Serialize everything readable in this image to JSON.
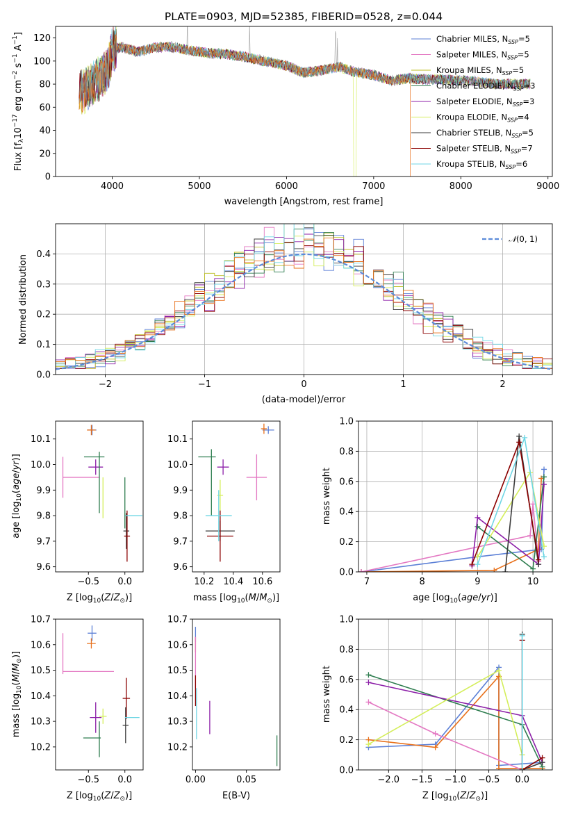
{
  "figure_title": "PLATE=0903, MJD=52385, FIBERID=0528, z=0.044",
  "colors": {
    "Chabrier MILES": "#5b7fd6",
    "Salpeter MILES": "#e377c2",
    "Kroupa MILES": "#bcbd22",
    "Chabrier ELODIE": "#2e7d4f",
    "Salpeter ELODIE": "#8c1fa8",
    "Kroupa ELODIE": "#d4ee5a",
    "Chabrier STELIB": "#3a3a3a",
    "Salpeter STELIB": "#8b0000",
    "Kroupa STELIB": "#6fd6e4",
    "orange": "#e8701a",
    "gaussian": "#5b8bd9"
  },
  "chart_data": [
    {
      "id": "spectrum",
      "type": "line",
      "xlabel": "wavelength [Angstrom, rest frame]",
      "ylabel": "Flux [f_λ10^-17 erg cm^-2 s^-1 A^-1]",
      "xlim": [
        3350,
        9050
      ],
      "ylim": [
        0,
        130
      ],
      "xticks": [
        4000,
        5000,
        6000,
        7000,
        8000,
        9000
      ],
      "yticks": [
        0,
        20,
        40,
        60,
        80,
        100,
        120
      ],
      "legend": [
        {
          "name": "Chabrier MILES",
          "nssp": "5"
        },
        {
          "name": "Salpeter MILES",
          "nssp": "5"
        },
        {
          "name": "Kroupa MILES",
          "nssp": "5"
        },
        {
          "name": "Chabrier ELODIE",
          "nssp": "3"
        },
        {
          "name": "Salpeter ELODIE",
          "nssp": "3"
        },
        {
          "name": "Kroupa ELODIE",
          "nssp": "4"
        },
        {
          "name": "Chabrier STELIB",
          "nssp": "5"
        },
        {
          "name": "Salpeter STELIB",
          "nssp": "7"
        },
        {
          "name": "Kroupa STELIB",
          "nssp": "6"
        }
      ],
      "continuum": [
        [
          3620,
          72
        ],
        [
          3700,
          75
        ],
        [
          3800,
          82
        ],
        [
          3900,
          88
        ],
        [
          3960,
          95
        ],
        [
          4000,
          110
        ],
        [
          4100,
          112
        ],
        [
          4300,
          108
        ],
        [
          4500,
          112
        ],
        [
          4700,
          112
        ],
        [
          4900,
          109
        ],
        [
          5100,
          107
        ],
        [
          5300,
          106
        ],
        [
          5500,
          104
        ],
        [
          5800,
          99
        ],
        [
          6000,
          96
        ],
        [
          6200,
          90
        ],
        [
          6400,
          92
        ],
        [
          6600,
          95
        ],
        [
          6800,
          90
        ],
        [
          7000,
          88
        ],
        [
          7200,
          83
        ],
        [
          7400,
          85
        ],
        [
          7600,
          84
        ],
        [
          7800,
          84
        ],
        [
          8000,
          83
        ],
        [
          8200,
          82
        ],
        [
          8400,
          80
        ],
        [
          8600,
          80
        ],
        [
          8800,
          80
        ]
      ]
    },
    {
      "id": "residuals",
      "type": "histogram",
      "xlabel": "(data-model)/error",
      "ylabel": "Normed distribution",
      "xlim": [
        -2.5,
        2.5
      ],
      "ylim": [
        0,
        0.5
      ],
      "xticks": [
        -2,
        -1,
        0,
        1,
        2
      ],
      "yticks": [
        0.0,
        0.1,
        0.2,
        0.3,
        0.4
      ],
      "grid": true,
      "legend_label": "N(0,1)",
      "bin_width": 0.1
    },
    {
      "id": "age_vs_Z",
      "type": "errorbar",
      "xlabel": "Z [log10(Z/Z⊙)]",
      "ylabel": "age [log10(age/yr)]",
      "xlim": [
        -0.95,
        0.25
      ],
      "ylim": [
        9.58,
        10.17
      ],
      "xticks": [
        -0.5,
        0.0
      ],
      "yticks": [
        9.6,
        9.7,
        9.8,
        9.9,
        10.0,
        10.1
      ],
      "points": [
        {
          "series": "Chabrier MILES",
          "x": -0.45,
          "y": 10.135,
          "xerr": 0.06,
          "yerr": 0.02
        },
        {
          "series": "orange",
          "x": -0.46,
          "y": 10.135,
          "xerr": 0.06,
          "yerr": 0.02
        },
        {
          "series": "Salpeter MILES",
          "x": -0.85,
          "y": 9.95,
          "xerr": 0.0,
          "yerr": 0.08
        },
        {
          "series": "Salpeter MILES",
          "x": -0.6,
          "y": 9.95,
          "xerr": 0.25,
          "yerr": 0.0
        },
        {
          "series": "Salpeter ELODIE",
          "x": -0.4,
          "y": 9.99,
          "xerr": 0.1,
          "yerr": 0.03
        },
        {
          "series": "Chabrier ELODIE",
          "x": -0.42,
          "y": 10.03,
          "xerr": 0.14,
          "yerr": 0.0
        },
        {
          "series": "Chabrier ELODIE",
          "x": -0.35,
          "y": 9.93,
          "xerr": 0.0,
          "yerr": 0.12
        },
        {
          "series": "Kroupa ELODIE",
          "x": -0.3,
          "y": 9.87,
          "xerr": 0.0,
          "yerr": 0.08
        },
        {
          "series": "Chabrier STELIB",
          "x": 0.02,
          "y": 9.74,
          "xerr": 0.04,
          "yerr": 0.07
        },
        {
          "series": "Salpeter STELIB",
          "x": 0.03,
          "y": 9.72,
          "xerr": 0.04,
          "yerr": 0.1
        },
        {
          "series": "Kroupa STELIB",
          "x": 0.12,
          "y": 9.8,
          "xerr": 0.12,
          "yerr": 0.0
        },
        {
          "series": "Chabrier ELODIE",
          "x": 0.0,
          "y": 9.85,
          "xerr": 0.0,
          "yerr": 0.1
        }
      ]
    },
    {
      "id": "age_vs_mass",
      "type": "errorbar",
      "xlabel": "mass [log10(M/M⊙)]",
      "xlim": [
        10.12,
        10.72
      ],
      "ylim": [
        9.58,
        10.17
      ],
      "xticks": [
        10.2,
        10.4,
        10.6
      ],
      "yticks": [
        9.6,
        9.7,
        9.8,
        9.9,
        10.0,
        10.1
      ],
      "points": [
        {
          "series": "Chabrier MILES",
          "x": 10.64,
          "y": 10.135,
          "xerr": 0.04,
          "yerr": 0.015
        },
        {
          "series": "orange",
          "x": 10.61,
          "y": 10.14,
          "xerr": 0.02,
          "yerr": 0.02
        },
        {
          "series": "Salpeter MILES",
          "x": 10.56,
          "y": 9.95,
          "xerr": 0.07,
          "yerr": 0.09
        },
        {
          "series": "Salpeter ELODIE",
          "x": 10.33,
          "y": 9.99,
          "xerr": 0.04,
          "yerr": 0.03
        },
        {
          "series": "Chabrier ELODIE",
          "x": 10.22,
          "y": 10.03,
          "xerr": 0.06,
          "yerr": 0.0
        },
        {
          "series": "Chabrier ELODIE",
          "x": 10.25,
          "y": 9.93,
          "xerr": 0.0,
          "yerr": 0.13
        },
        {
          "series": "Kroupa ELODIE",
          "x": 10.31,
          "y": 9.88,
          "xerr": 0.02,
          "yerr": 0.06
        },
        {
          "series": "Chabrier STELIB",
          "x": 10.31,
          "y": 9.74,
          "xerr": 0.1,
          "yerr": 0.04
        },
        {
          "series": "Salpeter STELIB",
          "x": 10.31,
          "y": 9.72,
          "xerr": 0.09,
          "yerr": 0.1
        },
        {
          "series": "Kroupa STELIB",
          "x": 10.3,
          "y": 9.8,
          "xerr": 0.09,
          "yerr": 0.1
        }
      ]
    },
    {
      "id": "mass_weight_vs_age",
      "type": "line",
      "xlabel": "age [log10(age/yr)]",
      "ylabel": "mass weight",
      "xlim": [
        6.85,
        10.35
      ],
      "ylim": [
        0,
        1
      ],
      "xticks": [
        7,
        8,
        9,
        10
      ],
      "yticks": [
        0.0,
        0.2,
        0.4,
        0.6,
        0.8,
        1.0
      ],
      "grid": true,
      "series": [
        {
          "name": "Chabrier MILES",
          "points": [
            [
              6.9,
              0.0
            ],
            [
              9.0,
              0.1
            ],
            [
              10.15,
              0.15
            ],
            [
              10.2,
              0.68
            ]
          ]
        },
        {
          "name": "orange",
          "points": [
            [
              6.9,
              0.0
            ],
            [
              9.3,
              0.01
            ],
            [
              10.1,
              0.15
            ],
            [
              10.15,
              0.62
            ]
          ]
        },
        {
          "name": "Salpeter MILES",
          "points": [
            [
              6.9,
              0.0
            ],
            [
              9.95,
              0.24
            ],
            [
              10.0,
              0.45
            ],
            [
              10.1,
              0.07
            ]
          ]
        },
        {
          "name": "Chabrier ELODIE",
          "points": [
            [
              9.0,
              0.3
            ],
            [
              10.0,
              0.02
            ],
            [
              10.2,
              0.63
            ]
          ]
        },
        {
          "name": "Salpeter ELODIE",
          "points": [
            [
              8.9,
              0.04
            ],
            [
              9.0,
              0.36
            ],
            [
              10.1,
              0.05
            ],
            [
              10.2,
              0.58
            ]
          ]
        },
        {
          "name": "Kroupa ELODIE",
          "points": [
            [
              9.0,
              0.1
            ],
            [
              9.95,
              0.66
            ],
            [
              10.2,
              0.17
            ]
          ]
        },
        {
          "name": "Chabrier STELIB",
          "points": [
            [
              9.5,
              0.0
            ],
            [
              9.75,
              0.9
            ],
            [
              10.1,
              0.05
            ]
          ]
        },
        {
          "name": "Salpeter STELIB",
          "points": [
            [
              8.9,
              0.05
            ],
            [
              9.75,
              0.86
            ],
            [
              10.1,
              0.08
            ]
          ]
        },
        {
          "name": "Kroupa STELIB",
          "points": [
            [
              9.0,
              0.05
            ],
            [
              9.85,
              0.89
            ],
            [
              10.2,
              0.1
            ]
          ]
        }
      ]
    },
    {
      "id": "mass_vs_Z",
      "type": "errorbar",
      "xlabel": "Z [log10(Z/Z⊙)]",
      "ylabel": "mass [log10(M/M⊙)]",
      "xlim": [
        -0.95,
        0.25
      ],
      "ylim": [
        10.11,
        10.7
      ],
      "xticks": [
        -0.5,
        0.0
      ],
      "yticks": [
        10.2,
        10.3,
        10.4,
        10.5,
        10.6,
        10.7
      ],
      "points": [
        {
          "series": "Chabrier MILES",
          "x": -0.45,
          "y": 10.645,
          "xerr": 0.06,
          "yerr": 0.03
        },
        {
          "series": "orange",
          "x": -0.46,
          "y": 10.605,
          "xerr": 0.06,
          "yerr": 0.02
        },
        {
          "series": "Salpeter MILES",
          "x": -0.85,
          "y": 10.565,
          "xerr": 0.0,
          "yerr": 0.08
        },
        {
          "series": "Salpeter MILES",
          "x": -0.5,
          "y": 10.495,
          "xerr": 0.35,
          "yerr": 0.0
        },
        {
          "series": "Salpeter ELODIE",
          "x": -0.4,
          "y": 10.315,
          "xerr": 0.08,
          "yerr": 0.06
        },
        {
          "series": "Kroupa ELODIE",
          "x": -0.3,
          "y": 10.32,
          "xerr": 0.05,
          "yerr": 0.03
        },
        {
          "series": "Chabrier ELODIE",
          "x": -0.45,
          "y": 10.235,
          "xerr": 0.12,
          "yerr": 0.0
        },
        {
          "series": "Chabrier ELODIE",
          "x": -0.35,
          "y": 10.23,
          "xerr": 0.0,
          "yerr": 0.07
        },
        {
          "series": "Salpeter STELIB",
          "x": 0.02,
          "y": 10.39,
          "xerr": 0.05,
          "yerr": 0.08
        },
        {
          "series": "Chabrier STELIB",
          "x": 0.01,
          "y": 10.285,
          "xerr": 0.04,
          "yerr": 0.07
        },
        {
          "series": "Kroupa STELIB",
          "x": 0.1,
          "y": 10.315,
          "xerr": 0.1,
          "yerr": 0.0
        }
      ]
    },
    {
      "id": "mass_vs_ebv",
      "type": "errorbar",
      "xlabel": "E(B-V)",
      "xlim": [
        -0.003,
        0.083
      ],
      "ylim": [
        10.11,
        10.7
      ],
      "xticks": [
        0.0,
        0.05
      ],
      "yticks": [
        10.2,
        10.3,
        10.4,
        10.5,
        10.6,
        10.7
      ],
      "points": [
        {
          "series": "Chabrier MILES",
          "x": 0.0,
          "y": 10.64,
          "xerr": 0.0,
          "yerr": 0.03
        },
        {
          "series": "orange",
          "x": 0.0,
          "y": 10.6,
          "xerr": 0.0,
          "yerr": 0.03
        },
        {
          "series": "Salpeter MILES",
          "x": 0.0,
          "y": 10.53,
          "xerr": 0.0,
          "yerr": 0.1
        },
        {
          "series": "Salpeter STELIB",
          "x": 0.0,
          "y": 10.42,
          "xerr": 0.0,
          "yerr": 0.06
        },
        {
          "series": "Kroupa STELIB",
          "x": 0.001,
          "y": 10.33,
          "xerr": 0.0,
          "yerr": 0.1
        },
        {
          "series": "Salpeter ELODIE",
          "x": 0.014,
          "y": 10.315,
          "xerr": 0.0,
          "yerr": 0.065
        },
        {
          "series": "Chabrier ELODIE",
          "x": 0.08,
          "y": 10.185,
          "xerr": 0.0,
          "yerr": 0.06
        }
      ]
    },
    {
      "id": "mass_weight_vs_Z",
      "type": "line",
      "xlabel": "Z [log10(Z/Z⊙)]",
      "ylabel": "mass weight",
      "xlim": [
        -2.45,
        0.45
      ],
      "ylim": [
        0,
        1
      ],
      "xticks": [
        -2.0,
        -1.5,
        -1.0,
        -0.5,
        0.0
      ],
      "yticks": [
        0.0,
        0.2,
        0.4,
        0.6,
        0.8,
        1.0
      ],
      "grid": true,
      "series": [
        {
          "name": "Chabrier MILES",
          "points": [
            [
              -2.3,
              0.15
            ],
            [
              -1.3,
              0.17
            ],
            [
              -0.35,
              0.68
            ],
            [
              -0.35,
              0.03
            ],
            [
              0.3,
              0.05
            ]
          ]
        },
        {
          "name": "orange",
          "points": [
            [
              -2.3,
              0.2
            ],
            [
              -1.3,
              0.15
            ],
            [
              -0.35,
              0.62
            ],
            [
              -0.35,
              0.01
            ],
            [
              0.3,
              0.01
            ]
          ]
        },
        {
          "name": "Salpeter MILES",
          "points": [
            [
              -2.3,
              0.45
            ],
            [
              -1.3,
              0.24
            ],
            [
              0.0,
              0.0
            ]
          ]
        },
        {
          "name": "Chabrier ELODIE",
          "points": [
            [
              -2.3,
              0.63
            ],
            [
              0.0,
              0.3
            ],
            [
              0.3,
              0.02
            ]
          ]
        },
        {
          "name": "Salpeter ELODIE",
          "points": [
            [
              -2.3,
              0.58
            ],
            [
              0.0,
              0.36
            ],
            [
              0.3,
              0.05
            ]
          ]
        },
        {
          "name": "Kroupa ELODIE",
          "points": [
            [
              -2.3,
              0.17
            ],
            [
              -0.35,
              0.66
            ],
            [
              0.0,
              0.1
            ]
          ]
        },
        {
          "name": "Chabrier STELIB",
          "points": [
            [
              0.0,
              0.9
            ],
            [
              0.0,
              0.0
            ],
            [
              0.3,
              0.05
            ]
          ]
        },
        {
          "name": "Salpeter STELIB",
          "points": [
            [
              0.0,
              0.86
            ],
            [
              0.0,
              0.0
            ],
            [
              0.3,
              0.08
            ]
          ]
        },
        {
          "name": "Kroupa STELIB",
          "points": [
            [
              0.0,
              0.89
            ],
            [
              0.0,
              0.0
            ]
          ]
        }
      ]
    }
  ]
}
